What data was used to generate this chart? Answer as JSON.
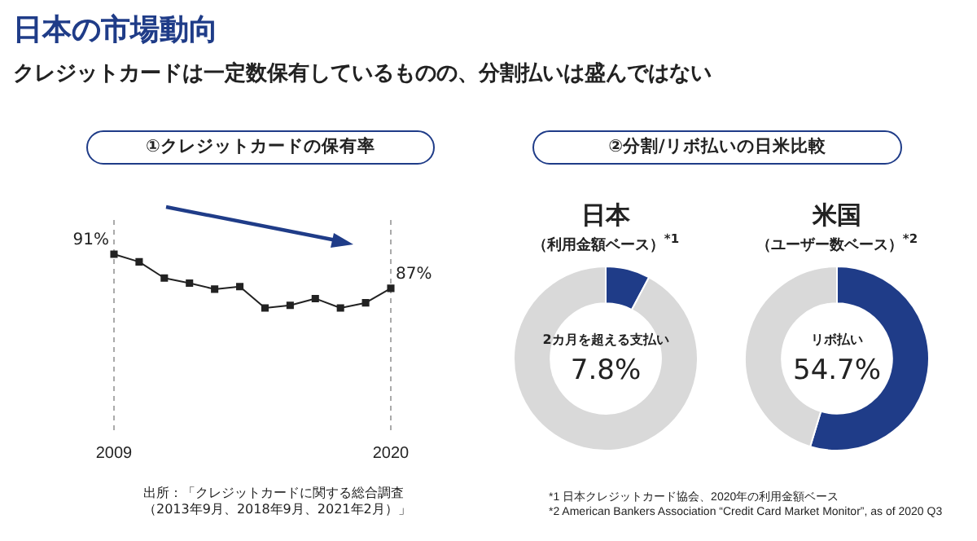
{
  "chart_data": [
    {
      "type": "other",
      "title": "日本の市場動向",
      "subtitle": "クレジットカードは一定数保有しているものの、分割払いは盛んではない"
    },
    {
      "type": "line",
      "title": "①クレジットカードの保有率",
      "categories": [
        "2009",
        null,
        null,
        null,
        null,
        null,
        null,
        null,
        null,
        null,
        null,
        "2020"
      ],
      "series": [
        {
          "color": "#222222",
          "values": [
            91,
            90.1,
            88.2,
            87.6,
            86.9,
            87.2,
            84.7,
            85.0,
            85.8,
            84.7,
            85.3,
            87
          ],
          "value_labels": [
            "91%",
            null,
            null,
            null,
            null,
            null,
            null,
            null,
            null,
            null,
            null,
            "87%"
          ]
        }
      ],
      "marker": "square",
      "tick_labels": "x",
      "ref_lines": [
        {
          "axis": "x",
          "value": "2009",
          "line_style": "dashed",
          "color": "#aaaaaa"
        },
        {
          "axis": "x",
          "value": "2020",
          "line_style": "dashed",
          "color": "#aaaaaa"
        }
      ],
      "annotations": [
        "出所：「クレジットカードに関する総合調査（2013年9月、2018年9月、2021年2月）」"
      ]
    },
    {
      "type": "other",
      "title": "②分割/リボ払いの日米比較"
    },
    {
      "type": "donut",
      "title": "日本",
      "subtitle": "（利用金額ベース）$^{*1}$",
      "categories": [
        "2カ月を超える支払い",
        null
      ],
      "values": [
        7.8,
        92.2
      ],
      "colors": [
        "#1f3c88",
        "#d9d9d9"
      ],
      "value_labels": [
        "7.8%",
        null
      ],
      "annotations": [
        "*1 日本クレジットカード協会、2020年の利用金額ベース"
      ]
    },
    {
      "type": "donut",
      "title": "米国",
      "subtitle": "（ユーザー数ベース）$^{*2}$",
      "categories": [
        "リボ払い",
        null
      ],
      "values": [
        54.7,
        45.3
      ],
      "colors": [
        "#1f3c88",
        "#d9d9d9"
      ],
      "value_labels": [
        "54.7%",
        null
      ],
      "annotations": [
        "*2 American Bankers Association “Credit Card Market Monitor”, as of 2020 Q3"
      ]
    }
  ]
}
